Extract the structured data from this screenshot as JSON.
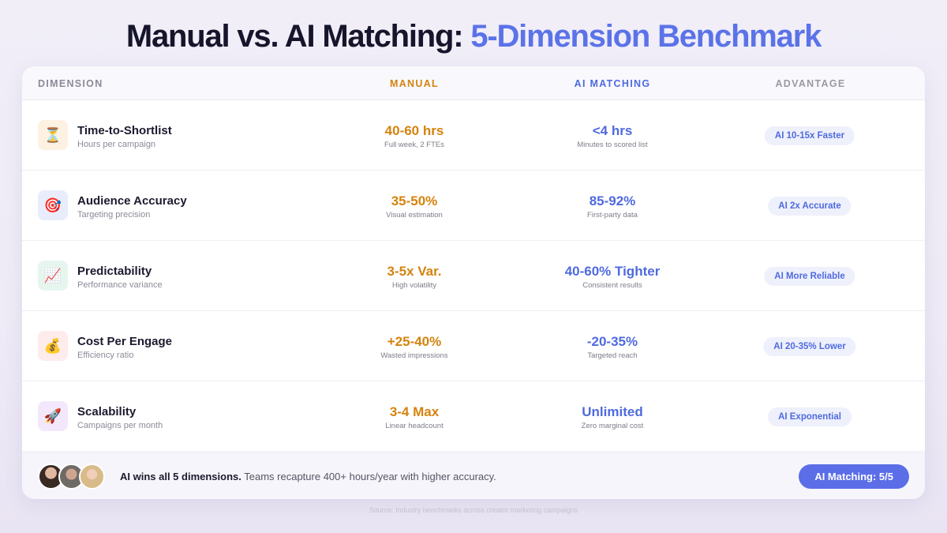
{
  "title": {
    "main": "Manual vs. AI Matching:",
    "accent": "5-Dimension Benchmark"
  },
  "table": {
    "headers": {
      "dimension": "DIMENSION",
      "manual": "MANUAL",
      "ai": "AI MATCHING",
      "advantage": "ADVANTAGE"
    },
    "rows": [
      {
        "icon": "⏳",
        "icon_name": "hourglass-icon",
        "icon_bg": "#fdf1e2",
        "name": "Time-to-Shortlist",
        "sub": "Hours per campaign",
        "manual": "40-60 hrs",
        "manual_sub": "Full week, 2 FTEs",
        "ai": "<4 hrs",
        "ai_sub": "Minutes to scored list",
        "advantage": "AI 10-15x Faster"
      },
      {
        "icon": "🎯",
        "icon_name": "target-icon",
        "icon_bg": "#e9edfb",
        "name": "Audience Accuracy",
        "sub": "Targeting precision",
        "manual": "35-50%",
        "manual_sub": "Visual estimation",
        "ai": "85-92%",
        "ai_sub": "First-party data",
        "advantage": "AI 2x Accurate"
      },
      {
        "icon": "📈",
        "icon_name": "chart-increasing-icon",
        "icon_bg": "#e6f6ef",
        "name": "Predictability",
        "sub": "Performance variance",
        "manual": "3-5x Var.",
        "manual_sub": "High volatility",
        "ai": "40-60% Tighter",
        "ai_sub": "Consistent results",
        "advantage": "AI More Reliable"
      },
      {
        "icon": "💰",
        "icon_name": "money-bag-icon",
        "icon_bg": "#fdeceb",
        "name": "Cost Per Engage",
        "sub": "Efficiency ratio",
        "manual": "+25-40%",
        "manual_sub": "Wasted impressions",
        "ai": "-20-35%",
        "ai_sub": "Targeted reach",
        "advantage": "AI 20-35% Lower"
      },
      {
        "icon": "🚀",
        "icon_name": "rocket-icon",
        "icon_bg": "#f3e8fb",
        "name": "Scalability",
        "sub": "Campaigns per month",
        "manual": "3-4 Max",
        "manual_sub": "Linear headcount",
        "ai": "Unlimited",
        "ai_sub": "Zero marginal cost",
        "advantage": "AI Exponential"
      }
    ]
  },
  "footer": {
    "bold": "AI wins all 5 dimensions.",
    "text": "Teams recapture 400+ hours/year with higher accuracy.",
    "pill": "AI Matching: 5/5"
  },
  "source": "Source: Industry benchmarks across creator marketing campaigns",
  "colors": {
    "manual": "#d4830e",
    "ai": "#4f6adf",
    "pill": "#5b6ee8"
  }
}
